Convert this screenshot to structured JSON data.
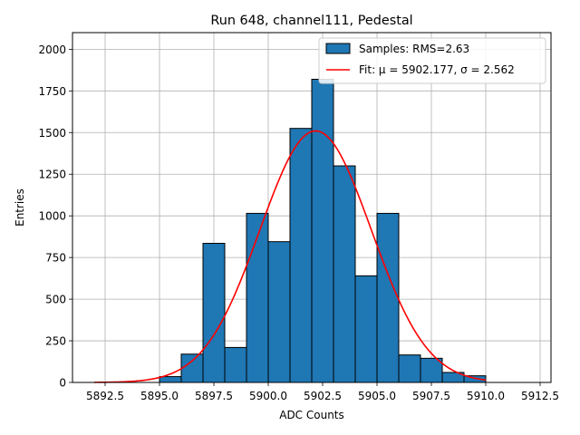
{
  "chart_data": {
    "type": "bar",
    "title": "Run 648, channel111, Pedestal",
    "xlabel": "ADC Counts",
    "ylabel": "Entries",
    "xlim": [
      5891.0,
      5913.0
    ],
    "ylim": [
      0,
      2100
    ],
    "xticks": [
      5892.5,
      5895.0,
      5897.5,
      5900.0,
      5902.5,
      5905.0,
      5907.5,
      5910.0,
      5912.5
    ],
    "xtick_labels": [
      "5892.5",
      "5895.0",
      "5897.5",
      "5900.0",
      "5902.5",
      "5905.0",
      "5907.5",
      "5910.0",
      "5912.5"
    ],
    "yticks": [
      0,
      250,
      500,
      750,
      1000,
      1250,
      1500,
      1750,
      2000
    ],
    "ytick_labels": [
      "0",
      "250",
      "500",
      "750",
      "1000",
      "1250",
      "1500",
      "1750",
      "2000"
    ],
    "grid": true,
    "legend_position": "top-right",
    "histogram": {
      "name": "Samples: RMS=2.63",
      "color": "#1f77b4",
      "edge_color": "#000000",
      "bin_edges": [
        5895,
        5896,
        5897,
        5898,
        5899,
        5900,
        5901,
        5902,
        5903,
        5904,
        5905,
        5906,
        5907,
        5908,
        5909,
        5910
      ],
      "counts": [
        35,
        170,
        835,
        210,
        1015,
        845,
        1525,
        1820,
        1300,
        640,
        1015,
        165,
        145,
        60,
        40
      ]
    },
    "fit": {
      "name": "Fit: μ = 5902.177, σ = 2.562",
      "color": "#ff0000",
      "mu": 5902.177,
      "sigma": 2.562,
      "amplitude": 1510,
      "x_range": [
        5892,
        5910
      ]
    }
  }
}
